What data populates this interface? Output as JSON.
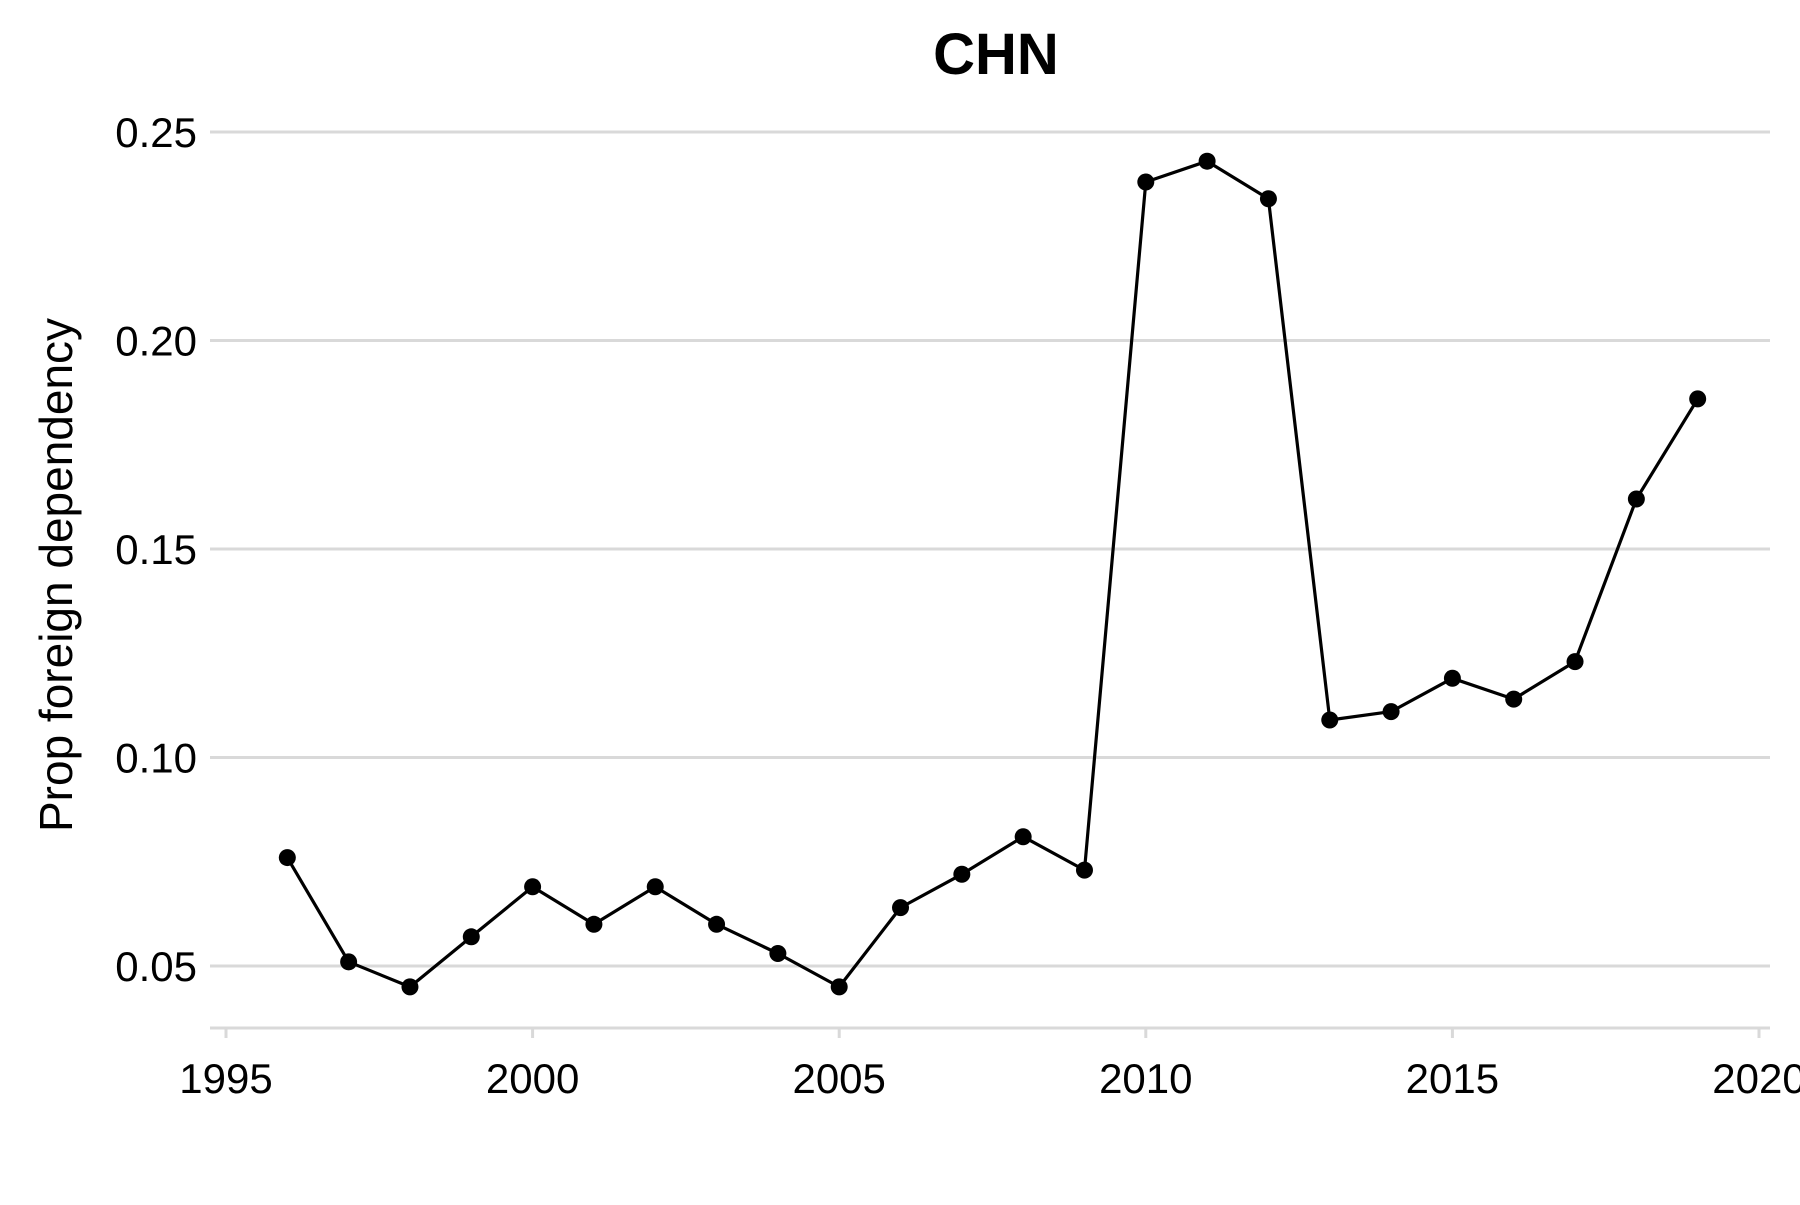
{
  "chart_data": {
    "type": "line",
    "title": "CHN",
    "xlabel": "",
    "ylabel": "Prop foreign dependency",
    "xlim": [
      1995,
      2020
    ],
    "ylim": [
      0.04,
      0.25
    ],
    "x_ticks": [
      1995,
      2000,
      2005,
      2010,
      2015,
      2020
    ],
    "x_tick_labels": [
      "1995",
      "2000",
      "2005",
      "2010",
      "2015",
      "2020"
    ],
    "y_ticks": [
      0.05,
      0.1,
      0.15,
      0.2,
      0.25
    ],
    "y_tick_labels": [
      "0.05",
      "0.10",
      "0.15",
      "0.20",
      "0.25"
    ],
    "grid": "horizontal",
    "line_color": "#000000",
    "grid_color": "#d9d9d9",
    "series": [
      {
        "x": [
          1996,
          1997,
          1998,
          1999,
          2000,
          2001,
          2002,
          2003,
          2004,
          2005,
          2006,
          2007,
          2008,
          2009,
          2010,
          2011,
          2012,
          2013,
          2014,
          2015,
          2016,
          2017,
          2018,
          2019
        ],
        "y": [
          0.076,
          0.051,
          0.045,
          0.057,
          0.069,
          0.06,
          0.069,
          0.06,
          0.053,
          0.045,
          0.064,
          0.072,
          0.081,
          0.073,
          0.238,
          0.243,
          0.234,
          0.109,
          0.111,
          0.119,
          0.114,
          0.123,
          0.162,
          0.186
        ]
      }
    ]
  }
}
